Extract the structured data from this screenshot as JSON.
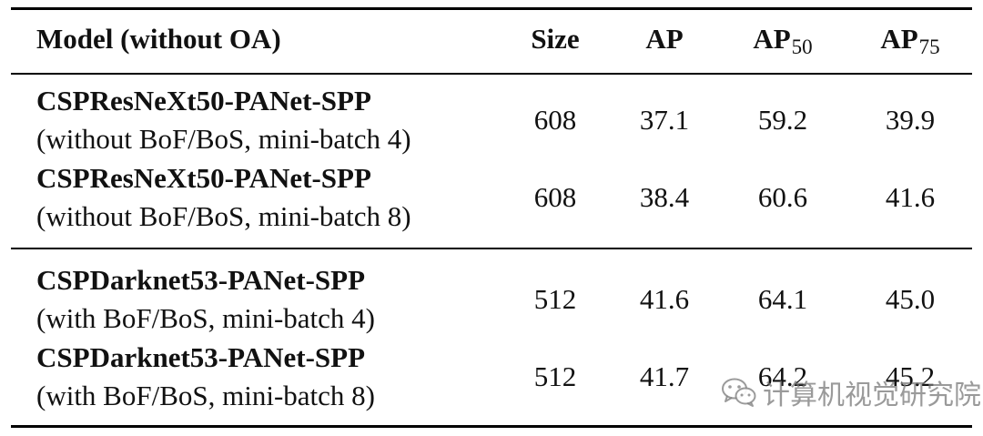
{
  "table": {
    "headers": {
      "model": "Model (without OA)",
      "size": "Size",
      "ap": "AP",
      "ap50_main": "AP",
      "ap50_sub": "50",
      "ap75_main": "AP",
      "ap75_sub": "75"
    },
    "rows": [
      {
        "model": "CSPResNeXt50-PANet-SPP",
        "note": "(without BoF/BoS, mini-batch 4)",
        "size": "608",
        "ap": "37.1",
        "ap50": "59.2",
        "ap75": "39.9"
      },
      {
        "model": "CSPResNeXt50-PANet-SPP",
        "note": "(without BoF/BoS, mini-batch 8)",
        "size": "608",
        "ap": "38.4",
        "ap50": "60.6",
        "ap75": "41.6"
      },
      {
        "model": "CSPDarknet53-PANet-SPP",
        "note": "(with BoF/BoS, mini-batch 4)",
        "size": "512",
        "ap": "41.6",
        "ap50": "64.1",
        "ap75": "45.0"
      },
      {
        "model": "CSPDarknet53-PANet-SPP",
        "note": "(with BoF/BoS, mini-batch 8)",
        "size": "512",
        "ap": "41.7",
        "ap50": "64.2",
        "ap75": "45.2"
      }
    ]
  },
  "watermark": {
    "icon": "wechat-icon",
    "text": "计算机视觉研究院"
  }
}
